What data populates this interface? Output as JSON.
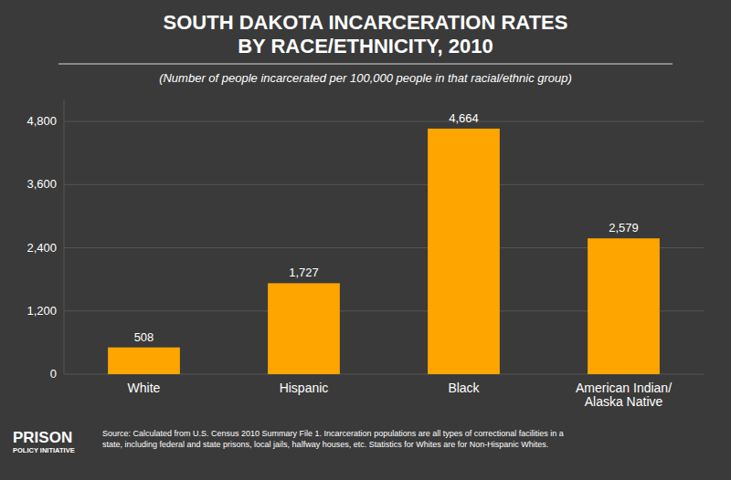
{
  "chart_data": {
    "type": "bar",
    "title": "SOUTH DAKOTA INCARCERATION RATES\nBY RACE/ETHNICITY, 2010",
    "subtitle": "(Number of people incarcerated per 100,000 people in that racial/ethnic group)",
    "categories": [
      "White",
      "Hispanic",
      "Black",
      "American Indian/\nAlaska Native"
    ],
    "values": [
      508,
      1727,
      4664,
      2579
    ],
    "value_labels": [
      "508",
      "1,727",
      "4,664",
      "2,579"
    ],
    "data_labels": true,
    "color": "#FFA500",
    "ylim": [
      0,
      5200
    ],
    "yticks": [
      0,
      {
        "value": 1200,
        "label": "1,200"
      },
      {
        "value": 2400,
        "label": "2,400"
      },
      {
        "value": 3600,
        "label": "3,600"
      },
      {
        "value": 4800,
        "label": "4,800"
      }
    ],
    "grid": true,
    "annotations": [
      "Source: Calculated from U.S. Census 2010 Summary File 1. Incarceration populations are all types of correctional facilities in a\nstate, including federal and state prisons, local jails, halfway houses, etc. Statistics for Whites are for Non-Hispanic Whites.",
      "PRISON",
      "POLICY INITIATIVE"
    ]
  }
}
